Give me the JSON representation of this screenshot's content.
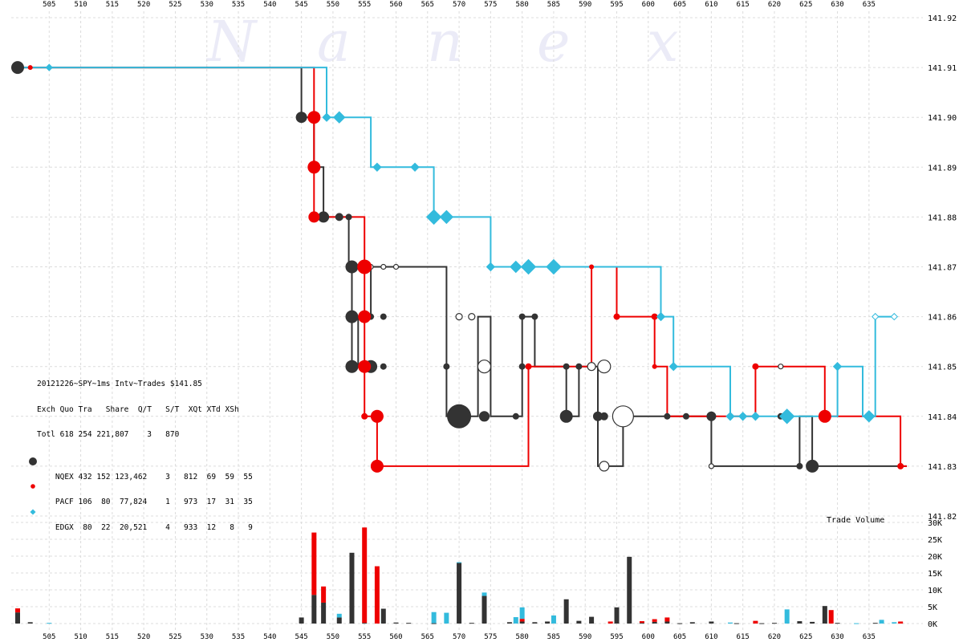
{
  "watermark": [
    "N",
    "a",
    "n",
    "e",
    "x"
  ],
  "legend": {
    "title": "20121226~SPY~1ms Intv~Trades $141.85",
    "header": "Exch Quo Tra   Share  Q/T   S/T  XQt XTd XSh",
    "rows": [
      {
        "name": "Totl",
        "text": "Totl 618 254 221,807    3   870",
        "symbol": "none"
      },
      {
        "name": "NQEX",
        "text": "NQEX 432 152 123,462    3   812  69  59  55",
        "symbol": "circle-large",
        "color": "#333333"
      },
      {
        "name": "PACF",
        "text": "PACF 106  80  77,824    1   973  17  31  35",
        "symbol": "circle-small",
        "color": "#ee0000"
      },
      {
        "name": "EDGX",
        "text": "EDGX  80  22  20,521    4   933  12   8   9",
        "symbol": "diamond",
        "color": "#33bbdd"
      }
    ]
  },
  "volume_title": "Trade Volume",
  "colors": {
    "NQEX": "#333333",
    "PACF": "#ee0000",
    "EDGX": "#33bbdd",
    "grid": "#dcdcdc"
  },
  "chart_data": {
    "type": "line",
    "subtype": "step with trade markers and volume bars",
    "x_ticks": [
      "505",
      "510",
      "515",
      "520",
      "525",
      "530",
      "535",
      "540",
      "545",
      "550",
      "555",
      "560",
      "565",
      "570",
      "575",
      "580",
      "585",
      "590",
      "595",
      "600",
      "605",
      "610",
      "615",
      "620",
      "625",
      "630",
      "635"
    ],
    "x_range": [
      500,
      641
    ],
    "y_ticks": [
      "141.92",
      "141.91",
      "141.90",
      "141.89",
      "141.88",
      "141.87",
      "141.86",
      "141.85",
      "141.84",
      "141.83",
      "141.82"
    ],
    "ylim": [
      141.82,
      141.92
    ],
    "volume_ticks": [
      "30K",
      "25K",
      "20K",
      "15K",
      "10K",
      "5K",
      "0K"
    ],
    "volume_ylim": [
      0,
      30000
    ],
    "series": [
      {
        "name": "NQEX",
        "color": "#333333",
        "steps": [
          [
            500,
            141.91
          ],
          [
            545,
            141.91
          ],
          [
            545,
            141.9
          ],
          [
            547,
            141.9
          ],
          [
            547,
            141.89
          ],
          [
            548.5,
            141.89
          ],
          [
            548.5,
            141.88
          ],
          [
            552.5,
            141.88
          ],
          [
            552.5,
            141.87
          ],
          [
            553,
            141.87
          ],
          [
            553,
            141.85
          ],
          [
            554,
            141.85
          ],
          [
            554,
            141.86
          ],
          [
            556,
            141.86
          ],
          [
            556,
            141.87
          ],
          [
            568,
            141.87
          ],
          [
            568,
            141.84
          ],
          [
            573,
            141.84
          ],
          [
            573,
            141.86
          ],
          [
            575,
            141.86
          ],
          [
            575,
            141.84
          ],
          [
            580,
            141.84
          ],
          [
            580,
            141.86
          ],
          [
            582,
            141.86
          ],
          [
            582,
            141.85
          ],
          [
            587,
            141.85
          ],
          [
            587,
            141.84
          ],
          [
            589,
            141.84
          ],
          [
            589,
            141.85
          ],
          [
            592,
            141.85
          ],
          [
            592,
            141.83
          ],
          [
            596,
            141.83
          ],
          [
            596,
            141.84
          ],
          [
            610,
            141.84
          ],
          [
            610,
            141.83
          ],
          [
            624,
            141.83
          ],
          [
            624,
            141.84
          ],
          [
            626,
            141.84
          ],
          [
            626,
            141.83
          ],
          [
            641,
            141.83
          ]
        ],
        "markers": [
          [
            500,
            141.91,
            8
          ],
          [
            545,
            141.9,
            7
          ],
          [
            547,
            141.89,
            7
          ],
          [
            548.5,
            141.88,
            7
          ],
          [
            551,
            141.88,
            5
          ],
          [
            552.5,
            141.88,
            4
          ],
          [
            553,
            141.87,
            8
          ],
          [
            553,
            141.86,
            8
          ],
          [
            553,
            141.85,
            8
          ],
          [
            556,
            141.85,
            8
          ],
          [
            556,
            141.86,
            4
          ],
          [
            558,
            141.85,
            4
          ],
          [
            558,
            141.86,
            4
          ],
          [
            568,
            141.85,
            4
          ],
          [
            570,
            141.84,
            15
          ],
          [
            574,
            141.84,
            6
          ],
          [
            579,
            141.84,
            4
          ],
          [
            580,
            141.86,
            4
          ],
          [
            580,
            141.85,
            4
          ],
          [
            582,
            141.86,
            4
          ],
          [
            587,
            141.84,
            8
          ],
          [
            587,
            141.85,
            4
          ],
          [
            589,
            141.85,
            4
          ],
          [
            592,
            141.84,
            6
          ],
          [
            593,
            141.84,
            5
          ],
          [
            603,
            141.84,
            4
          ],
          [
            606,
            141.84,
            4
          ],
          [
            610,
            141.84,
            6
          ],
          [
            621,
            141.84,
            4
          ],
          [
            624,
            141.83,
            4
          ],
          [
            626,
            141.83,
            8
          ]
        ],
        "hollow_markers": [
          [
            556,
            141.87,
            3
          ],
          [
            558,
            141.87,
            3
          ],
          [
            560,
            141.87,
            3
          ],
          [
            570,
            141.86,
            4
          ],
          [
            572,
            141.86,
            4
          ],
          [
            574,
            141.85,
            8
          ],
          [
            574,
            141.84,
            6
          ],
          [
            591,
            141.85,
            5
          ],
          [
            593,
            141.85,
            8
          ],
          [
            593,
            141.83,
            6
          ],
          [
            596,
            141.84,
            13
          ],
          [
            610,
            141.83,
            3
          ],
          [
            621,
            141.85,
            3
          ]
        ]
      },
      {
        "name": "PACF",
        "color": "#ee0000",
        "steps": [
          [
            500,
            141.91
          ],
          [
            547,
            141.91
          ],
          [
            547,
            141.88
          ],
          [
            555,
            141.88
          ],
          [
            555,
            141.84
          ],
          [
            557,
            141.84
          ],
          [
            557,
            141.83
          ],
          [
            581,
            141.83
          ],
          [
            581,
            141.85
          ],
          [
            591,
            141.85
          ],
          [
            591,
            141.87
          ],
          [
            595,
            141.87
          ],
          [
            595,
            141.86
          ],
          [
            601,
            141.86
          ],
          [
            601,
            141.85
          ],
          [
            603,
            141.85
          ],
          [
            603,
            141.84
          ],
          [
            617,
            141.84
          ],
          [
            617,
            141.85
          ],
          [
            628,
            141.85
          ],
          [
            628,
            141.84
          ],
          [
            640,
            141.84
          ],
          [
            640,
            141.83
          ],
          [
            641,
            141.83
          ]
        ],
        "markers": [
          [
            502,
            141.91,
            3
          ],
          [
            547,
            141.9,
            8
          ],
          [
            547,
            141.89,
            8
          ],
          [
            547,
            141.88,
            7
          ],
          [
            555,
            141.87,
            9
          ],
          [
            555,
            141.86,
            8
          ],
          [
            555,
            141.85,
            8
          ],
          [
            555,
            141.84,
            4
          ],
          [
            557,
            141.84,
            8
          ],
          [
            557,
            141.83,
            8
          ],
          [
            581,
            141.85,
            4
          ],
          [
            591,
            141.87,
            3
          ],
          [
            595,
            141.86,
            4
          ],
          [
            601,
            141.86,
            4
          ],
          [
            601,
            141.85,
            3
          ],
          [
            617,
            141.85,
            4
          ],
          [
            628,
            141.84,
            8
          ],
          [
            640,
            141.83,
            4
          ]
        ]
      },
      {
        "name": "EDGX",
        "color": "#33bbdd",
        "steps": [
          [
            500,
            141.91
          ],
          [
            549,
            141.91
          ],
          [
            549,
            141.9
          ],
          [
            556,
            141.9
          ],
          [
            556,
            141.89
          ],
          [
            566,
            141.89
          ],
          [
            566,
            141.88
          ],
          [
            575,
            141.88
          ],
          [
            575,
            141.87
          ],
          [
            602,
            141.87
          ],
          [
            602,
            141.86
          ],
          [
            604,
            141.86
          ],
          [
            604,
            141.85
          ],
          [
            613,
            141.85
          ],
          [
            613,
            141.84
          ],
          [
            630,
            141.84
          ],
          [
            630,
            141.85
          ],
          [
            634,
            141.85
          ],
          [
            634,
            141.84
          ],
          [
            636,
            141.84
          ],
          [
            636,
            141.86
          ],
          [
            639,
            141.86
          ]
        ],
        "markers": [
          [
            505,
            141.91,
            4
          ],
          [
            549,
            141.9,
            5
          ],
          [
            551,
            141.9,
            7
          ],
          [
            557,
            141.89,
            5
          ],
          [
            563,
            141.89,
            5
          ],
          [
            566,
            141.88,
            9
          ],
          [
            568,
            141.88,
            8
          ],
          [
            575,
            141.87,
            5
          ],
          [
            579,
            141.87,
            7
          ],
          [
            581,
            141.87,
            9
          ],
          [
            585,
            141.87,
            9
          ],
          [
            602,
            141.86,
            5
          ],
          [
            604,
            141.85,
            5
          ],
          [
            613,
            141.84,
            5
          ],
          [
            615,
            141.84,
            5
          ],
          [
            617,
            141.84,
            5
          ],
          [
            622,
            141.84,
            9
          ],
          [
            630,
            141.85,
            5
          ],
          [
            635,
            141.84,
            7
          ]
        ],
        "hollow_markers": [
          [
            636,
            141.86,
            4
          ],
          [
            639,
            141.86,
            4
          ]
        ]
      }
    ],
    "volume": {
      "NQEX": [
        [
          500,
          3300
        ],
        [
          502,
          400
        ],
        [
          545,
          1800
        ],
        [
          547,
          8500
        ],
        [
          548.5,
          6200
        ],
        [
          551,
          1800
        ],
        [
          553,
          21000
        ],
        [
          555,
          200
        ],
        [
          558,
          4400
        ],
        [
          560,
          300
        ],
        [
          562,
          200
        ],
        [
          566,
          100
        ],
        [
          570,
          18000
        ],
        [
          572,
          200
        ],
        [
          574,
          8200
        ],
        [
          578,
          400
        ],
        [
          580,
          600
        ],
        [
          582,
          400
        ],
        [
          584,
          600
        ],
        [
          587,
          7200
        ],
        [
          589,
          800
        ],
        [
          591,
          2000
        ],
        [
          595,
          4800
        ],
        [
          597,
          19800
        ],
        [
          599,
          200
        ],
        [
          601,
          500
        ],
        [
          603,
          600
        ],
        [
          605,
          100
        ],
        [
          607,
          400
        ],
        [
          610,
          600
        ],
        [
          614,
          100
        ],
        [
          618,
          100
        ],
        [
          620,
          200
        ],
        [
          624,
          700
        ],
        [
          626,
          500
        ],
        [
          628,
          5200
        ],
        [
          630,
          200
        ],
        [
          636,
          200
        ]
      ],
      "PACF": [
        [
          500,
          1200
        ],
        [
          547,
          18500
        ],
        [
          548.5,
          4800
        ],
        [
          555,
          28300
        ],
        [
          557,
          17000
        ],
        [
          580,
          800
        ],
        [
          594,
          600
        ],
        [
          599,
          500
        ],
        [
          601,
          800
        ],
        [
          603,
          1200
        ],
        [
          617,
          800
        ],
        [
          629,
          4000
        ],
        [
          640,
          600
        ]
      ],
      "EDGX": [
        [
          505,
          200
        ],
        [
          551,
          1100
        ],
        [
          566,
          3300
        ],
        [
          568,
          3200
        ],
        [
          570,
          200
        ],
        [
          574,
          1000
        ],
        [
          579,
          1900
        ],
        [
          580,
          3400
        ],
        [
          585,
          2400
        ],
        [
          613,
          300
        ],
        [
          622,
          4200
        ],
        [
          633,
          100
        ],
        [
          637,
          1100
        ],
        [
          639,
          400
        ]
      ]
    }
  }
}
